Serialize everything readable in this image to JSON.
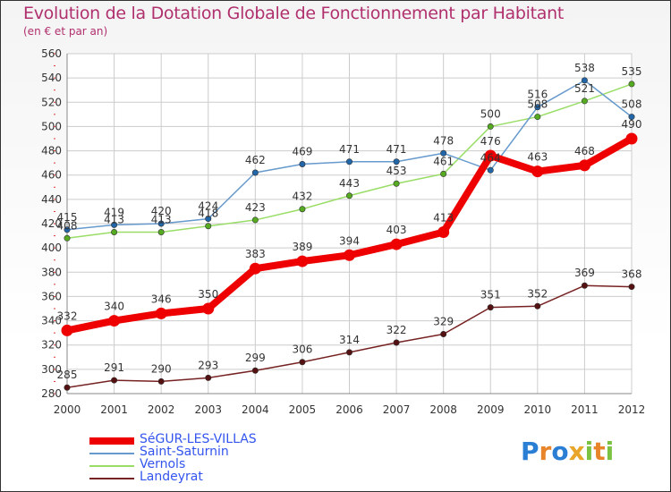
{
  "header": {
    "title": "Evolution de la Dotation Globale de Fonctionnement par Habitant",
    "subtitle": "(en € et par an)"
  },
  "colors": {
    "grid": "#cccccc",
    "axis_text": "#333333",
    "title": "#b0306e",
    "legend_text": "#3355ee"
  },
  "logo": {
    "text": "Proxiti",
    "letters": [
      "P",
      "r",
      "o",
      "x",
      "i",
      "t",
      "i"
    ]
  },
  "chart_data": {
    "type": "line",
    "title": "Evolution de la Dotation Globale de Fonctionnement par Habitant",
    "subtitle": "(en € et par an)",
    "xlabel": "",
    "ylabel": "",
    "x": [
      2000,
      2001,
      2002,
      2003,
      2004,
      2005,
      2006,
      2007,
      2008,
      2009,
      2010,
      2011,
      2012
    ],
    "ylim": [
      280,
      560
    ],
    "yticks": [
      280,
      300,
      320,
      340,
      360,
      380,
      400,
      420,
      440,
      460,
      480,
      500,
      520,
      540,
      560
    ],
    "grid": true,
    "legend_position": "bottom-left",
    "series": [
      {
        "name": "SéGUR-LES-VILLAS",
        "color": "#ee0000",
        "values": [
          332,
          340,
          346,
          350,
          383,
          389,
          394,
          403,
          413,
          476,
          463,
          468,
          490
        ]
      },
      {
        "name": "Saint-Saturnin",
        "color": "#6699cc",
        "values": [
          415,
          419,
          420,
          424,
          462,
          469,
          471,
          471,
          478,
          464,
          516,
          538,
          508
        ]
      },
      {
        "name": "Vernols",
        "color": "#99dd66",
        "values": [
          408,
          413,
          413,
          418,
          423,
          432,
          443,
          453,
          461,
          500,
          508,
          521,
          535
        ]
      },
      {
        "name": "Landeyrat",
        "color": "#772222",
        "values": [
          285,
          291,
          290,
          293,
          299,
          306,
          314,
          322,
          329,
          351,
          352,
          369,
          368
        ]
      }
    ]
  }
}
